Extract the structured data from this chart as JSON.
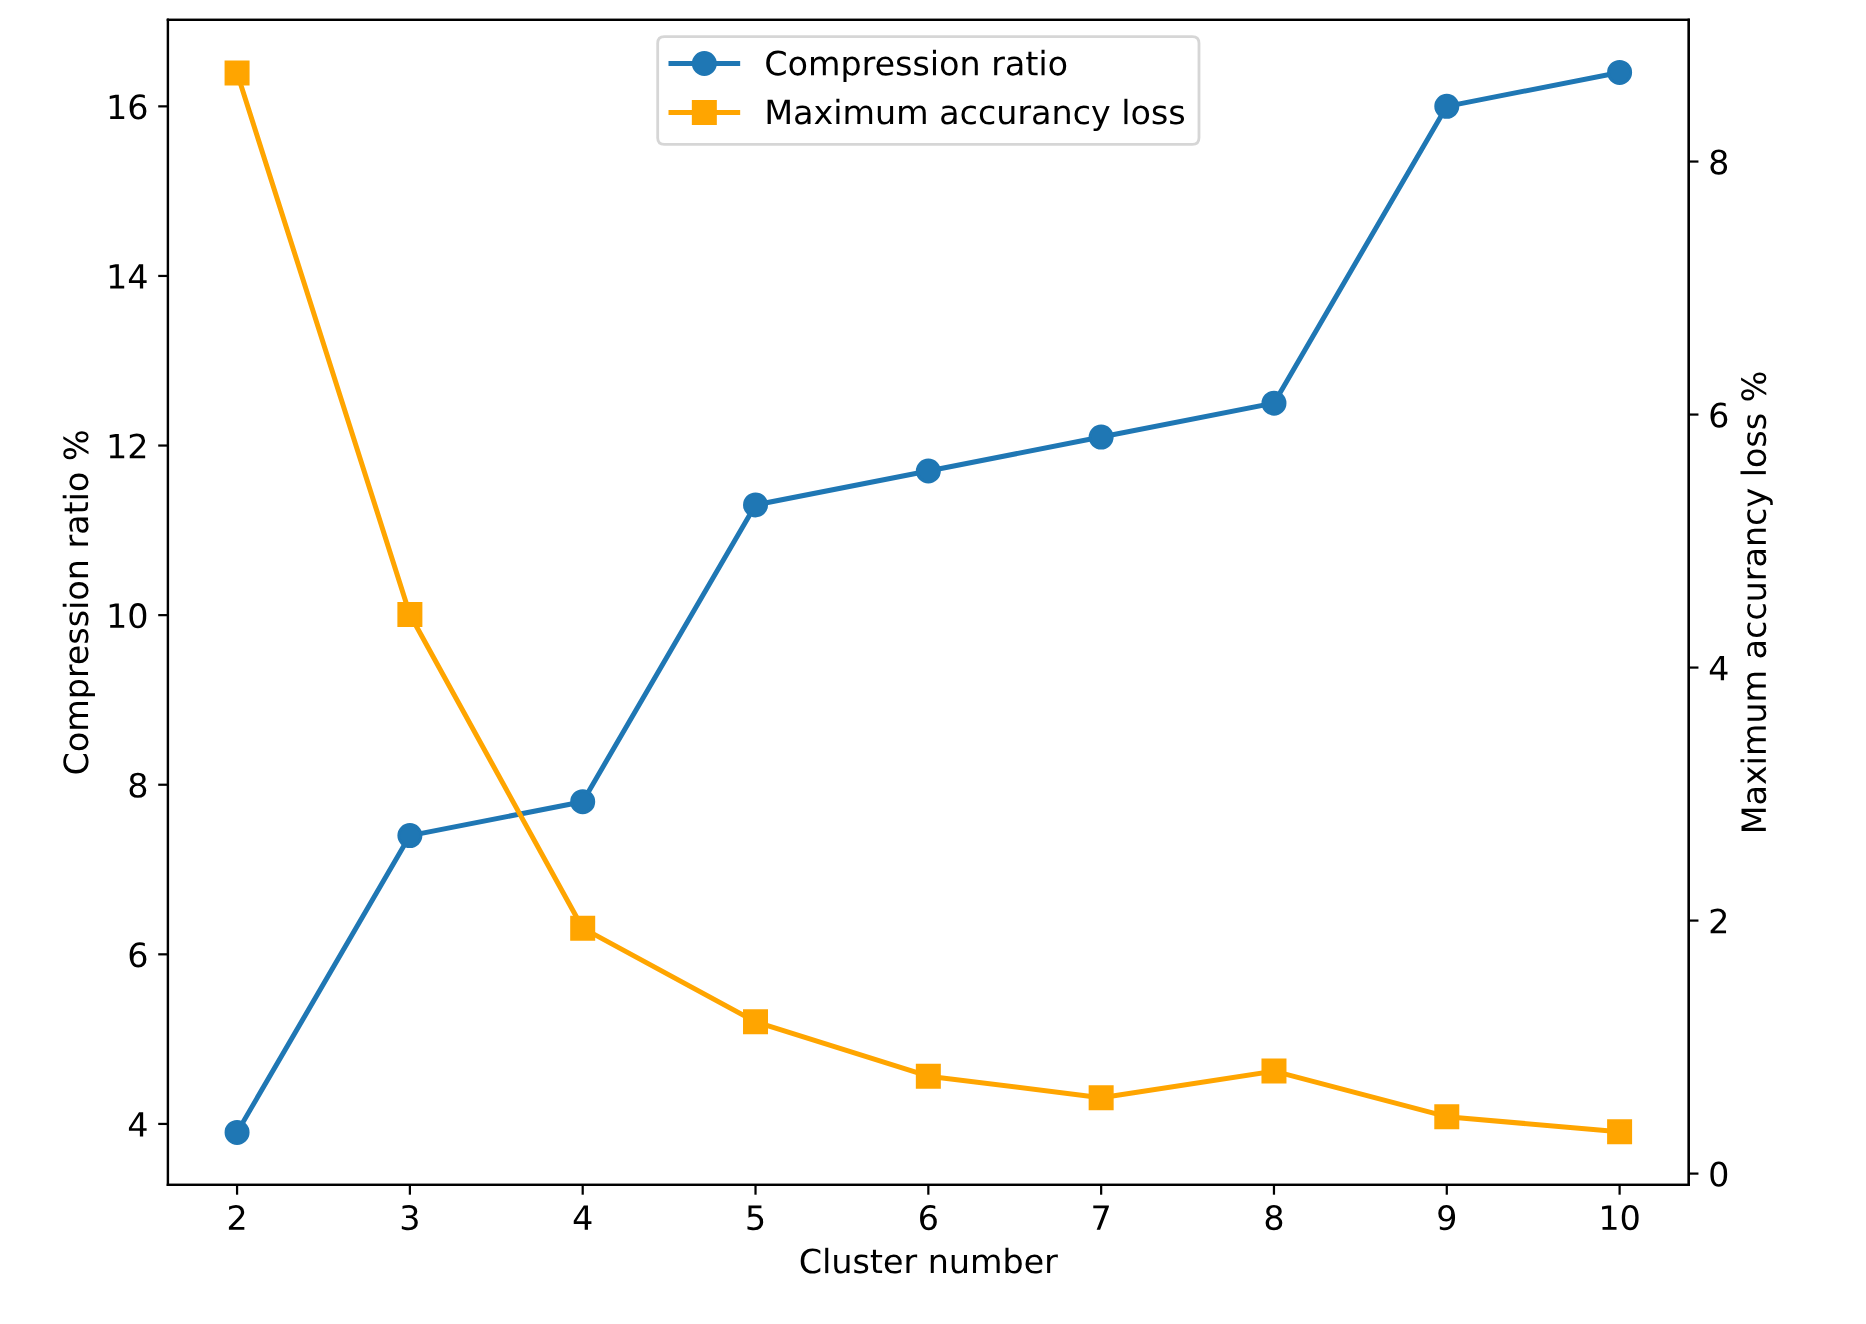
{
  "chart_data": {
    "type": "line",
    "xlabel": "Cluster number",
    "ylabel": "Compression ratio %",
    "y2label": "Maximum accurancy loss %",
    "x": [
      2,
      3,
      4,
      5,
      6,
      7,
      8,
      9,
      10
    ],
    "series": [
      {
        "name": "Compression ratio",
        "color": "#1f77b4",
        "marker": "circle",
        "values": [
          3.9,
          7.4,
          7.8,
          11.3,
          11.7,
          12.1,
          12.5,
          16.0,
          16.4
        ]
      },
      {
        "name": "Maximum accurancy loss",
        "color": "#ffa500",
        "marker": "square",
        "axis": "y2",
        "values": [
          8.7,
          4.42,
          1.94,
          1.2,
          0.77,
          0.6,
          0.81,
          0.45,
          0.33
        ]
      }
    ],
    "xlim": [
      1.6,
      10.4
    ],
    "xticks": [
      2,
      3,
      4,
      5,
      6,
      7,
      8,
      9,
      10
    ],
    "ylim": [
      3.28,
      17.02
    ],
    "yticks": [
      4,
      6,
      8,
      10,
      12,
      14,
      16
    ],
    "y2lim": [
      -0.09,
      9.12
    ],
    "y2ticks": [
      0,
      2,
      4,
      6,
      8
    ],
    "legend": "top center",
    "grid": false,
    "line_style": "solid"
  }
}
